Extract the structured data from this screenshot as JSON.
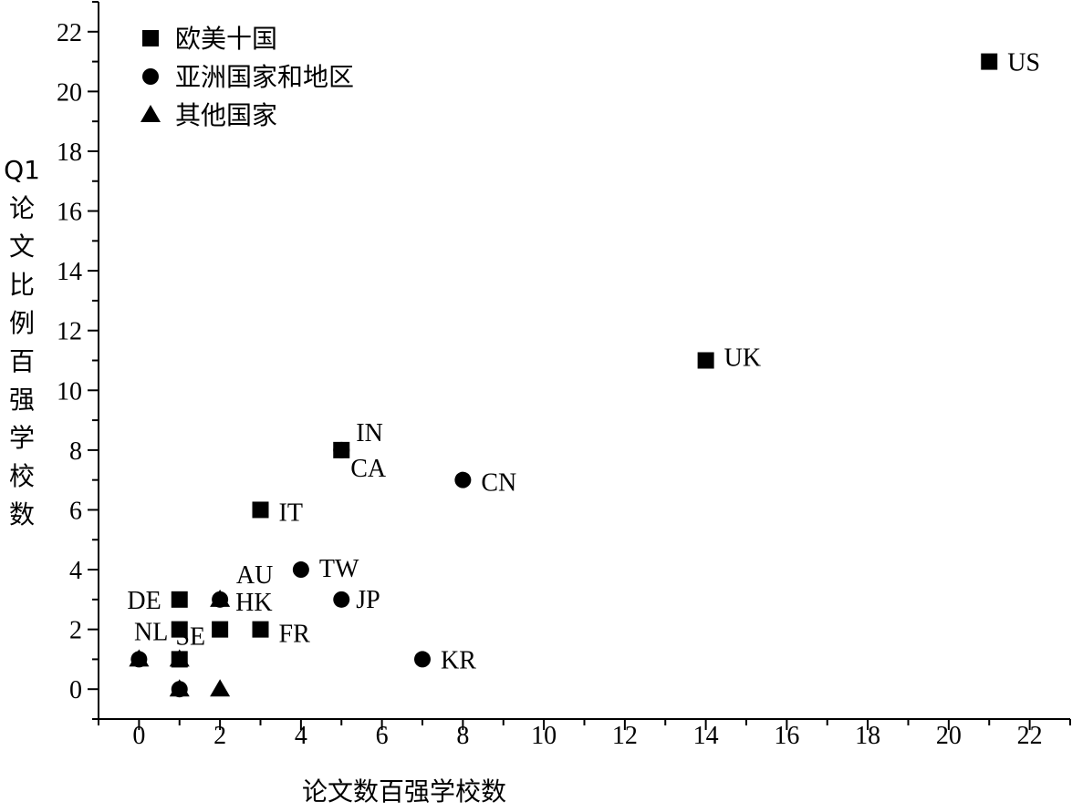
{
  "chart_data": {
    "type": "scatter",
    "title": "",
    "xlabel": "论文数百强学校数",
    "ylabel": "Q1论文比例百强学校数",
    "xlim": [
      -1,
      23
    ],
    "ylim": [
      -1,
      23
    ],
    "xticks": [
      0,
      2,
      4,
      6,
      8,
      10,
      12,
      14,
      16,
      18,
      20,
      22
    ],
    "yticks": [
      0,
      2,
      4,
      6,
      8,
      10,
      12,
      14,
      16,
      18,
      20,
      22
    ],
    "grid": false,
    "legend_position": "top-left",
    "series": [
      {
        "name": "欧美十国",
        "marker": "square",
        "points": [
          {
            "label": "US",
            "x": 21,
            "y": 21
          },
          {
            "label": "UK",
            "x": 14,
            "y": 11
          },
          {
            "label": "CA",
            "x": 5,
            "y": 8
          },
          {
            "label": "IT",
            "x": 3,
            "y": 6
          },
          {
            "label": "DE",
            "x": 1,
            "y": 3
          },
          {
            "label": "",
            "x": 1,
            "y": 2
          },
          {
            "label": "",
            "x": 2,
            "y": 2
          },
          {
            "label": "FR",
            "x": 3,
            "y": 2
          },
          {
            "label": "",
            "x": 1,
            "y": 1
          }
        ]
      },
      {
        "name": "亚洲国家和地区",
        "marker": "circle",
        "points": [
          {
            "label": "IN",
            "x": 5,
            "y": 8
          },
          {
            "label": "CN",
            "x": 8,
            "y": 7
          },
          {
            "label": "TW",
            "x": 4,
            "y": 4
          },
          {
            "label": "JP",
            "x": 5,
            "y": 3
          },
          {
            "label": "HK",
            "x": 2,
            "y": 3
          },
          {
            "label": "KR",
            "x": 7,
            "y": 1
          },
          {
            "label": "",
            "x": 0,
            "y": 1
          },
          {
            "label": "",
            "x": 1,
            "y": 0
          }
        ]
      },
      {
        "name": "其他国家",
        "marker": "triangle",
        "points": [
          {
            "label": "AU",
            "x": 2,
            "y": 3
          },
          {
            "label": "NL",
            "x": 0,
            "y": 1
          },
          {
            "label": "SE",
            "x": 1,
            "y": 1
          },
          {
            "label": "",
            "x": 1,
            "y": 0
          },
          {
            "label": "",
            "x": 2,
            "y": 0
          }
        ]
      }
    ]
  }
}
